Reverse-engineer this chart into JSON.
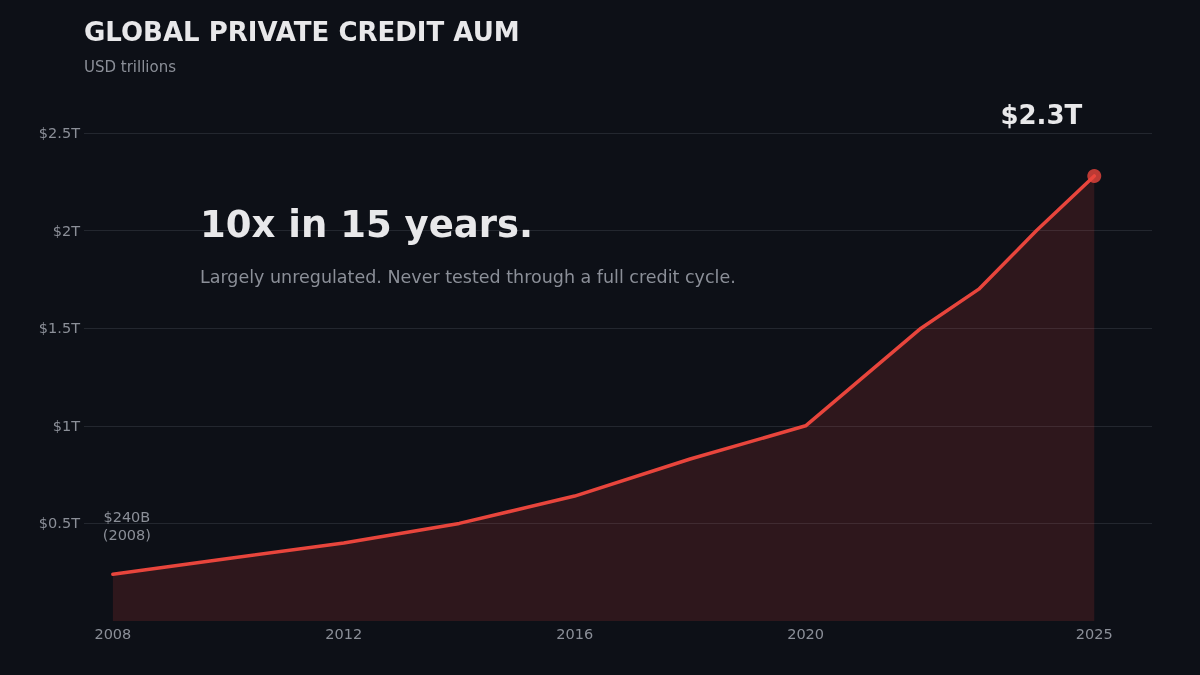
{
  "chart_data": {
    "type": "area",
    "title": "GLOBAL PRIVATE CREDIT AUM",
    "subtitle": "USD trillions",
    "x": [
      2008,
      2010,
      2012,
      2014,
      2016,
      2018,
      2020,
      2022,
      2023,
      2024,
      2025
    ],
    "series": [
      {
        "color": "#e8453c",
        "values": [
          0.24,
          0.32,
          0.4,
          0.5,
          0.64,
          0.83,
          1.0,
          1.5,
          1.7,
          2.0,
          2.28
        ]
      },
      {
        "type": "scatter",
        "marker": "circle",
        "color": "#e8453c",
        "x": [
          2025
        ],
        "values": [
          2.28
        ]
      }
    ],
    "xlim": [
      2007.5,
      2026
    ],
    "xticks": [
      2008,
      2012,
      2016,
      2020,
      2025
    ],
    "ylim": [
      0,
      2.5
    ],
    "yticks": [
      {
        "value": 0.5,
        "label": "$0.5T"
      },
      {
        "value": 1,
        "label": "$1T"
      },
      {
        "value": 1.5,
        "label": "$1.5T"
      },
      {
        "value": 2,
        "label": "$2T"
      },
      {
        "value": 2.5,
        "label": "$2.5T"
      }
    ],
    "grid": "y",
    "annotations": [
      "10x in 15 years.",
      "Largely unregulated. Never tested through a full credit cycle.",
      {
        "text": "$2.3T",
        "x": 2025,
        "y": 2.28
      },
      {
        "text": "$240B\n(2008)",
        "x": 2008,
        "y": 0.24
      }
    ]
  }
}
